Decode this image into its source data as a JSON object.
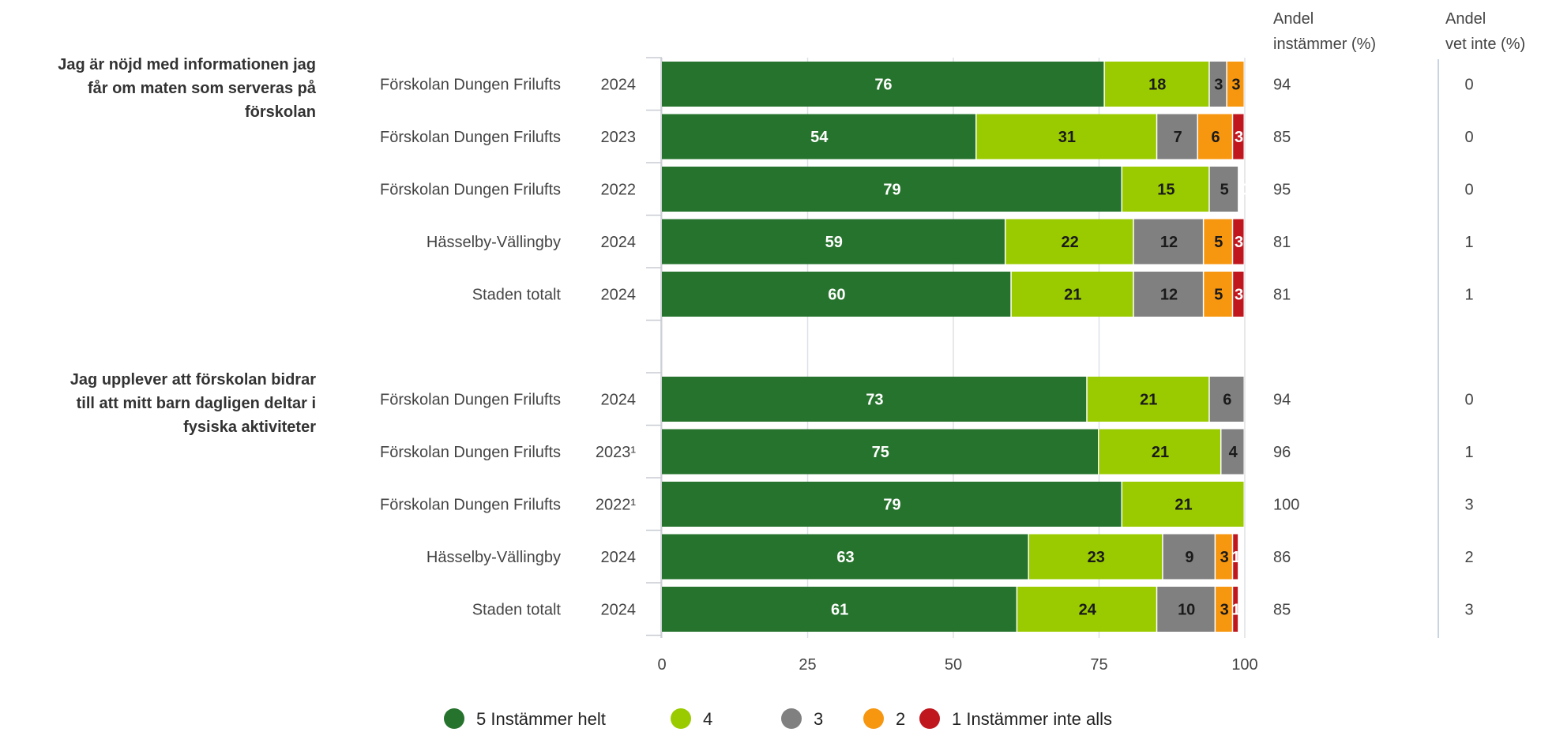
{
  "headers": {
    "agree": [
      "Andel",
      "instämmer (%)"
    ],
    "dontknow": [
      "Andel",
      "vet inte (%)"
    ]
  },
  "colors": {
    "5 Instämmer helt": "#26732d",
    "4": "#9acb00",
    "3": "#808080",
    "2": "#f7960f",
    "1 Instämmer inte alls": "#c0171e"
  },
  "chart_data": {
    "type": "bar",
    "orientation": "horizontal",
    "stacked": true,
    "xlim": [
      0,
      100
    ],
    "x_ticks": [
      0,
      25,
      50,
      75,
      100
    ],
    "grid": true,
    "legend_position": "bottom",
    "legend": [
      "5 Instämmer helt",
      "4",
      "3",
      "2",
      "1 Instämmer inte alls"
    ],
    "groups": [
      {
        "question": [
          "Jag är nöjd med informationen jag",
          "får om maten som serveras på",
          "förskolan"
        ],
        "rows": [
          {
            "unit": "Förskolan Dungen Frilufts",
            "year": "2024",
            "values": [
              76,
              18,
              3,
              3,
              0
            ],
            "agree": "94",
            "dontknow": "0"
          },
          {
            "unit": "Förskolan Dungen Frilufts",
            "year": "2023",
            "values": [
              54,
              31,
              7,
              6,
              3
            ],
            "agree": "85",
            "dontknow": "0"
          },
          {
            "unit": "Förskolan Dungen Frilufts",
            "year": "2022",
            "values": [
              79,
              15,
              5,
              0,
              0
            ],
            "agree": "95",
            "dontknow": "0"
          },
          {
            "unit": "Hässelby-Vällingby",
            "year": "2024",
            "values": [
              59,
              22,
              12,
              5,
              3
            ],
            "agree": "81",
            "dontknow": "1"
          },
          {
            "unit": "Staden totalt",
            "year": "2024",
            "values": [
              60,
              21,
              12,
              5,
              3
            ],
            "agree": "81",
            "dontknow": "1"
          }
        ]
      },
      {
        "question": [
          "Jag upplever att förskolan bidrar",
          "till att mitt barn dagligen deltar i",
          "fysiska aktiviteter"
        ],
        "rows": [
          {
            "unit": "Förskolan Dungen Frilufts",
            "year": "2024",
            "values": [
              73,
              21,
              6,
              0,
              0
            ],
            "agree": "94",
            "dontknow": "0"
          },
          {
            "unit": "Förskolan Dungen Frilufts",
            "year": "2023¹",
            "values": [
              75,
              21,
              4,
              0,
              0
            ],
            "agree": "96",
            "dontknow": "1"
          },
          {
            "unit": "Förskolan Dungen Frilufts",
            "year": "2022¹",
            "values": [
              79,
              21,
              0,
              0,
              0
            ],
            "agree": "100",
            "dontknow": "3"
          },
          {
            "unit": "Hässelby-Vällingby",
            "year": "2024",
            "values": [
              63,
              23,
              9,
              3,
              1
            ],
            "agree": "86",
            "dontknow": "2"
          },
          {
            "unit": "Staden totalt",
            "year": "2024",
            "values": [
              61,
              24,
              10,
              3,
              1
            ],
            "agree": "85",
            "dontknow": "3"
          }
        ]
      }
    ]
  }
}
